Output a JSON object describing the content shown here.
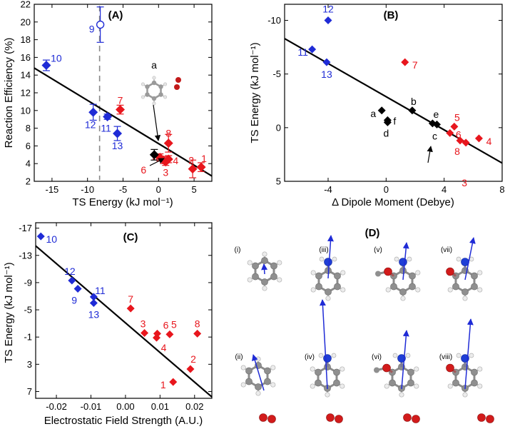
{
  "figure": {
    "colors": {
      "blue": "#1f2bd6",
      "red": "#e8161d",
      "black": "#000000"
    }
  },
  "chart_data": [
    {
      "panel": "(A)",
      "type": "scatter",
      "xlabel": "TS Energy (kJ mol⁻¹)",
      "ylabel": "Reaction Efficiency (%)",
      "xlim": [
        -17.5,
        7.5
      ],
      "ylim": [
        2,
        22
      ],
      "xticks": [
        -15,
        -10,
        -5,
        0,
        5
      ],
      "yticks": [
        2,
        4,
        6,
        8,
        10,
        12,
        14,
        16,
        18,
        20,
        22
      ],
      "fit_line": {
        "x": [
          -17.5,
          7.5
        ],
        "y": [
          14.8,
          2.6
        ]
      },
      "dashed_vline_x": -8.3,
      "points": [
        {
          "label": "10",
          "x": -15.8,
          "y": 15.1,
          "err": 0.6,
          "color": "blue",
          "marker": "diamond"
        },
        {
          "label": "9",
          "x": -8.2,
          "y": 19.7,
          "err": 2.0,
          "color": "blue",
          "marker": "circle-open"
        },
        {
          "label": "12",
          "x": -9.2,
          "y": 9.8,
          "err": 0.9,
          "color": "blue",
          "marker": "diamond"
        },
        {
          "label": "11",
          "x": -7.2,
          "y": 9.3,
          "err": 0.3,
          "color": "blue",
          "marker": "diamond"
        },
        {
          "label": "13",
          "x": -5.8,
          "y": 7.4,
          "err": 0.8,
          "color": "blue",
          "marker": "diamond"
        },
        {
          "label": "7",
          "x": -5.4,
          "y": 10.1,
          "err": 0.5,
          "color": "red",
          "marker": "diamond"
        },
        {
          "label": "8",
          "x": 1.4,
          "y": 6.3,
          "err": 1.0,
          "color": "red",
          "marker": "diamond"
        },
        {
          "label": "5",
          "x": 0.2,
          "y": 4.7,
          "err": 0.4,
          "color": "red",
          "marker": "diamond"
        },
        {
          "label": "4",
          "x": 1.4,
          "y": 4.5,
          "err": 0.4,
          "color": "red",
          "marker": "diamond"
        },
        {
          "label": "3",
          "x": 1.0,
          "y": 4.2,
          "err": 0.4,
          "color": "red",
          "marker": "diamond"
        },
        {
          "label": "6",
          "x": 0.7,
          "y": 4.4,
          "err": 0.4,
          "color": "red",
          "marker": "diamond"
        },
        {
          "label": "2",
          "x": 4.8,
          "y": 3.4,
          "err": 1.0,
          "color": "red",
          "marker": "diamond"
        },
        {
          "label": "1",
          "x": 6.0,
          "y": 3.6,
          "err": 0.5,
          "color": "red",
          "marker": "diamond"
        },
        {
          "label": "a",
          "x": -0.6,
          "y": 5.0,
          "err": 0.6,
          "color": "black",
          "marker": "diamond"
        }
      ],
      "annotations": [
        {
          "text": "a"
        }
      ]
    },
    {
      "panel": "(B)",
      "type": "scatter",
      "xlabel": "Δ Dipole Moment (Debye)",
      "ylabel": "TS Energy (kJ mol⁻¹)",
      "xlim": [
        -7,
        8
      ],
      "ylim": [
        5,
        -11.5
      ],
      "xticks": [
        -4,
        0,
        4,
        8
      ],
      "yticks": [
        5,
        0,
        -5,
        -10
      ],
      "fit_line": {
        "x": [
          -7,
          8
        ],
        "y": [
          -8.3,
          3.3
        ]
      },
      "points": [
        {
          "label": "12",
          "x": -4.0,
          "y": -10.0,
          "color": "blue"
        },
        {
          "label": "11",
          "x": -5.1,
          "y": -7.3,
          "color": "blue"
        },
        {
          "label": "13",
          "x": -4.1,
          "y": -6.1,
          "color": "blue"
        },
        {
          "label": "7",
          "x": 1.3,
          "y": -6.1,
          "color": "red"
        },
        {
          "label": "a",
          "x": -0.3,
          "y": -1.6,
          "color": "black"
        },
        {
          "label": "b",
          "x": 1.8,
          "y": -1.6,
          "color": "black"
        },
        {
          "label": "d",
          "x": 0.1,
          "y": -0.5,
          "color": "black"
        },
        {
          "label": "f",
          "x": 0.1,
          "y": -0.7,
          "color": "black"
        },
        {
          "label": "e",
          "x": 3.2,
          "y": -0.4,
          "color": "black"
        },
        {
          "label": "c",
          "x": 3.5,
          "y": -0.3,
          "color": "black"
        },
        {
          "label": "5",
          "x": 4.7,
          "y": -0.1,
          "color": "red"
        },
        {
          "label": "6",
          "x": 4.4,
          "y": 0.5,
          "color": "red"
        },
        {
          "label": "8",
          "x": 5.1,
          "y": 1.2,
          "color": "red"
        },
        {
          "label": "3",
          "x": 5.5,
          "y": 1.4,
          "color": "red"
        },
        {
          "label": "4",
          "x": 6.4,
          "y": 1.0,
          "color": "red"
        }
      ]
    },
    {
      "panel": "(C)",
      "type": "scatter",
      "xlabel": "Electrostatic Field Strength (A.U.)",
      "ylabel": "TS Energy (kJ mol⁻¹)",
      "xlim": [
        -0.026,
        0.025
      ],
      "ylim": [
        8,
        -17.8
      ],
      "xticks": [
        -0.02,
        -0.01,
        0.0,
        0.01,
        0.02
      ],
      "tick_text": [
        "-0.02",
        "-0.01",
        "0.00",
        "0.01",
        "0.02"
      ],
      "yticks": [
        -17,
        -13,
        -9,
        -5,
        -1,
        3,
        7
      ],
      "fit_line": {
        "x": [
          -0.026,
          0.025
        ],
        "y": [
          -14.4,
          7.8
        ]
      },
      "points": [
        {
          "label": "10",
          "x": -0.0245,
          "y": -15.8,
          "color": "blue"
        },
        {
          "label": "12",
          "x": -0.0155,
          "y": -9.3,
          "color": "blue"
        },
        {
          "label": "9",
          "x": -0.0138,
          "y": -8.1,
          "color": "blue"
        },
        {
          "label": "11",
          "x": -0.0092,
          "y": -6.9,
          "color": "blue"
        },
        {
          "label": "13",
          "x": -0.0092,
          "y": -6.0,
          "color": "blue"
        },
        {
          "label": "7",
          "x": 0.0015,
          "y": -5.2,
          "color": "red"
        },
        {
          "label": "3",
          "x": 0.0055,
          "y": -1.6,
          "color": "red"
        },
        {
          "label": "6",
          "x": 0.0092,
          "y": -1.5,
          "color": "red"
        },
        {
          "label": "4",
          "x": 0.009,
          "y": -0.9,
          "color": "red"
        },
        {
          "label": "5",
          "x": 0.0128,
          "y": -1.4,
          "color": "red"
        },
        {
          "label": "8",
          "x": 0.0208,
          "y": -1.5,
          "color": "red"
        },
        {
          "label": "2",
          "x": 0.0188,
          "y": 3.7,
          "color": "red"
        },
        {
          "label": "1",
          "x": 0.0138,
          "y": 5.6,
          "color": "red"
        }
      ]
    }
  ],
  "panel_d": {
    "label": "(D)",
    "molecules": [
      {
        "id": "(i)"
      },
      {
        "id": "(iii)"
      },
      {
        "id": "(v)"
      },
      {
        "id": "(vii)"
      },
      {
        "id": "(ii)"
      },
      {
        "id": "(iv)"
      },
      {
        "id": "(vi)"
      },
      {
        "id": "(viii)"
      }
    ]
  }
}
